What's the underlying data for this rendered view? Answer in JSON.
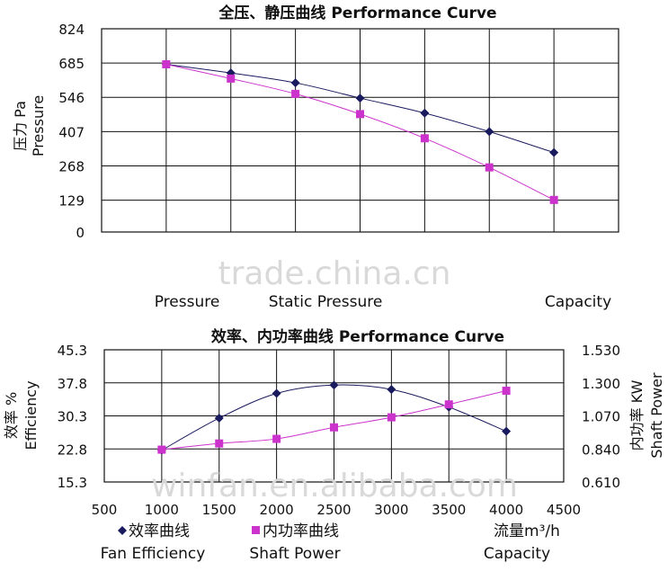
{
  "chart_data": [
    {
      "type": "line",
      "title": "全压、静压曲线  Performance Curve",
      "ylabel_cn": "压力 Pa",
      "ylabel_en": "Pressure",
      "ylim": [
        0,
        824
      ],
      "y_ticks": [
        "0",
        "129",
        "268",
        "407",
        "546",
        "685",
        "824"
      ],
      "y_tick_values": [
        0,
        129,
        268,
        407,
        546,
        685,
        824
      ],
      "x_tick_count": 8,
      "grid": true,
      "capacity_label": "Capacity",
      "series": [
        {
          "name": "Pressure",
          "color": "#1a1a5e",
          "marker": "diamond",
          "values": [
            680,
            645,
            605,
            543,
            482,
            407,
            322
          ]
        },
        {
          "name": "Static Pressure",
          "color": "#cc33cc",
          "marker": "square",
          "values": [
            680,
            622,
            560,
            478,
            380,
            262,
            130
          ]
        }
      ]
    },
    {
      "type": "line",
      "title": "效率、内功率曲线 Performance Curve",
      "ylabel_cn": "效率 %",
      "ylabel_en": "Efficiency",
      "y2label_cn": "内功率 KW",
      "y2label_en": "Shaft Power",
      "xlim": [
        500,
        4500
      ],
      "x_ticks": [
        "500",
        "1000",
        "1500",
        "2000",
        "2500",
        "3000",
        "3500",
        "4000",
        "4500"
      ],
      "x_tick_values": [
        500,
        1000,
        1500,
        2000,
        2500,
        3000,
        3500,
        4000,
        4500
      ],
      "xlabel_cn": "流量m³/h",
      "xlabel_en": "Capacity",
      "ylim": [
        15.3,
        45.3
      ],
      "y_ticks": [
        "15.3",
        "22.8",
        "30.3",
        "37.8",
        "45.3"
      ],
      "y_tick_values": [
        15.3,
        22.8,
        30.3,
        37.8,
        45.3
      ],
      "y2lim": [
        0.61,
        1.53
      ],
      "y2_ticks": [
        "0.610",
        "0.840",
        "1.070",
        "1.300",
        "1.530"
      ],
      "y2_tick_values": [
        0.61,
        0.84,
        1.07,
        1.3,
        1.53
      ],
      "grid": true,
      "series": [
        {
          "name": "效率曲线",
          "name_en": "Fan Efficiency",
          "color": "#1a1a5e",
          "marker": "diamond",
          "axis": "left",
          "x": [
            1000,
            1500,
            2000,
            2500,
            3000,
            3500,
            4000
          ],
          "values": [
            22.5,
            29.8,
            35.4,
            37.3,
            36.3,
            32.3,
            26.8
          ]
        },
        {
          "name": "内功率曲线",
          "name_en": "Shaft Power",
          "color": "#cc33cc",
          "marker": "square",
          "axis": "right",
          "x": [
            1000,
            1500,
            2000,
            2500,
            3000,
            3500,
            4000
          ],
          "values": [
            0.835,
            0.878,
            0.91,
            0.99,
            1.06,
            1.15,
            1.245
          ]
        }
      ]
    }
  ],
  "watermark_top": "trade.china.cn",
  "watermark_bottom": "winfan.en.alibaba.com"
}
